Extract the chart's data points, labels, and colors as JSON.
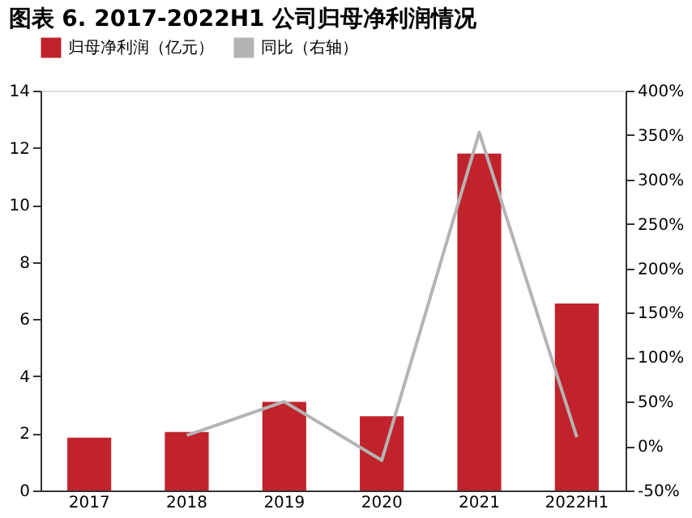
{
  "chart_data": {
    "type": "bar",
    "title": "图表 6.  2017-2022H1 公司归母净利润情况",
    "categories": [
      "2017",
      "2018",
      "2019",
      "2020",
      "2021",
      "2022H1"
    ],
    "series": [
      {
        "name": "归母净利润（亿元）",
        "color": "#c0232c",
        "values": [
          1.85,
          2.05,
          3.1,
          2.6,
          11.8,
          6.55
        ]
      },
      {
        "name": "同比（右轴）",
        "color": "#b4b4b4",
        "type": "line",
        "axis": "y2",
        "values": [
          null,
          12,
          50,
          -16,
          353,
          10
        ]
      }
    ],
    "ylim": [
      0,
      14
    ],
    "yticks": [
      0,
      2,
      4,
      6,
      8,
      10,
      12,
      14
    ],
    "y2lim": [
      -50,
      400
    ],
    "y2ticks": [
      {
        "value": -50,
        "label": "-50%"
      },
      {
        "value": 0,
        "label": "0%"
      },
      {
        "value": 50,
        "label": "50%"
      },
      {
        "value": 100,
        "label": "100%"
      },
      {
        "value": 150,
        "label": "150%"
      },
      {
        "value": 200,
        "label": "200%"
      },
      {
        "value": 250,
        "label": "250%"
      },
      {
        "value": 300,
        "label": "300%"
      },
      {
        "value": 350,
        "label": "350%"
      },
      {
        "value": 400,
        "label": "400%"
      }
    ],
    "grid": false,
    "legend": "top"
  }
}
